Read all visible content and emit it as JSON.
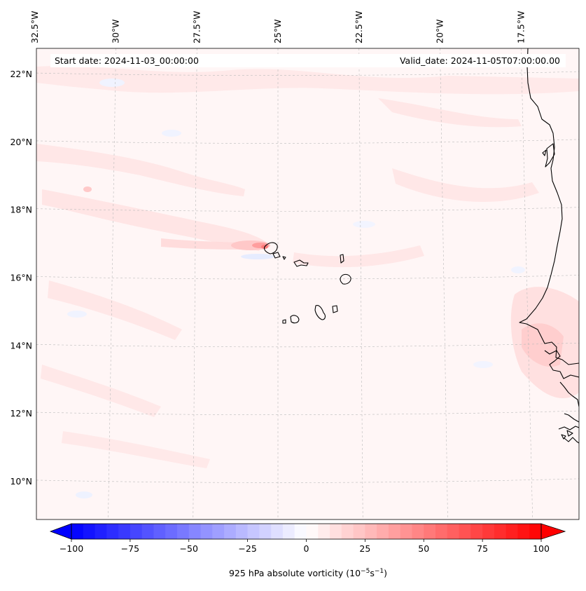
{
  "header": {
    "start_label": "Start date: 2024-11-03_00:00:00",
    "valid_label": "Valid_date: 2024-11-05T07:00:00.00"
  },
  "map": {
    "projection": "conic",
    "lon_range": [
      -33.5,
      -15.5
    ],
    "lat_range": [
      9,
      23
    ],
    "lon_ticks": [
      -32.5,
      -30,
      -27.5,
      -25,
      -22.5,
      -20,
      -17.5
    ],
    "lon_tick_labels": [
      "32.5°W",
      "30°W",
      "27.5°W",
      "25°W",
      "22.5°W",
      "20°W",
      "17.5°W"
    ],
    "lat_ticks": [
      10,
      12,
      14,
      16,
      18,
      20,
      22
    ],
    "lat_tick_labels": [
      "10°N",
      "12°N",
      "14°N",
      "16°N",
      "18°N",
      "20°N",
      "22°N"
    ],
    "gridlines": true,
    "coastline_color": "#000000",
    "islands": "Cape Verde",
    "coast": "West Africa (Mauritania, Senegal, Gambia, Guinea-Bissau)"
  },
  "colorbar": {
    "min": -100,
    "max": 100,
    "ticks": [
      -100,
      -75,
      -50,
      -25,
      0,
      25,
      50,
      75,
      100
    ],
    "tick_labels": [
      "−100",
      "−75",
      "−50",
      "−25",
      "0",
      "25",
      "50",
      "75",
      "100"
    ],
    "colormap": "bwr",
    "extend": "both",
    "label": "925 hPa absolute vorticity (10",
    "label_exp1": "−5",
    "label_mid": "s",
    "label_exp2": "−1",
    "label_end": ")",
    "color_low": "#0000ff",
    "color_mid": "#ffffff",
    "color_high": "#ff0000"
  }
}
